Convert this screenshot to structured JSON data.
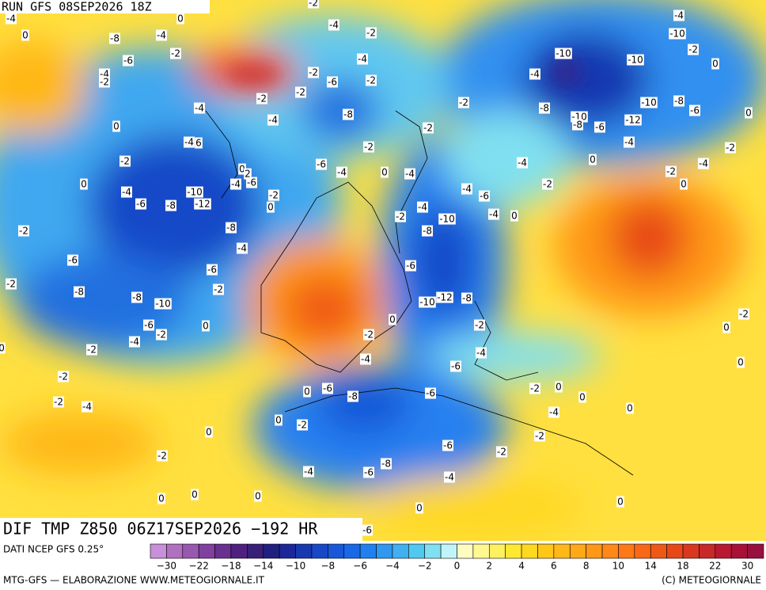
{
  "header": {
    "run": "RUN GFS 08SEP2026 18Z"
  },
  "footer": {
    "title": "DIF TMP Z850 06Z17SEP2026 −192 HR",
    "source": "DATI NCEP GFS 0.25°",
    "credit": "MTG-GFS — ELABORAZIONE WWW.METEOGIORNALE.IT",
    "copyright": "(C) METEOGIORNALE"
  },
  "colorbar": {
    "colors": [
      "#c890d8",
      "#b070c0",
      "#9858b0",
      "#8040a0",
      "#683090",
      "#502080",
      "#382078",
      "#202080",
      "#1c2898",
      "#1838b0",
      "#1848c8",
      "#1858d8",
      "#1868e8",
      "#2080f0",
      "#3098f0",
      "#40b0f0",
      "#50c8f0",
      "#80e0f0",
      "#c0f4f8",
      "#fffcc0",
      "#fff890",
      "#fff060",
      "#ffe830",
      "#ffd820",
      "#ffc818",
      "#ffb818",
      "#ffa818",
      "#ff9818",
      "#ff8818",
      "#ff7818",
      "#f86818",
      "#f05818",
      "#e84818",
      "#d83820",
      "#c82828",
      "#b81830",
      "#a81038",
      "#981040"
    ],
    "ticks": [
      "−30",
      "−22",
      "−18",
      "−14",
      "−10",
      "−8",
      "−6",
      "−4",
      "−2",
      "0",
      "2",
      "4",
      "6",
      "8",
      "10",
      "14",
      "18",
      "22",
      "30"
    ]
  },
  "contour_labels": [
    -4,
    0,
    -2,
    0,
    -8,
    -4,
    -4,
    -2,
    -4,
    -10,
    -6,
    -2,
    -4,
    -10,
    -10,
    -2,
    0,
    -4,
    -2,
    -2,
    -6,
    -2,
    -4,
    -2,
    -4,
    -2,
    -2,
    -8,
    -8,
    -10,
    -8,
    -6,
    0,
    0,
    -4,
    -10,
    -8,
    -6,
    -12,
    -2,
    -4,
    6,
    -2,
    -4,
    -2,
    -2,
    -6,
    -4,
    0,
    -4,
    -4,
    0,
    -4,
    0,
    2,
    -4,
    -6,
    0,
    -2,
    -2,
    0,
    -4,
    -10,
    -2,
    -4,
    -6,
    -6,
    -8,
    -12,
    0,
    -4,
    0,
    -2,
    -4,
    -10,
    -2,
    -8,
    -8,
    -4,
    -6,
    -6,
    -6,
    -2,
    -2,
    -8,
    -8,
    -10,
    -10,
    -12,
    -8,
    -2,
    0,
    -6,
    -2,
    0,
    -2,
    0,
    -4,
    -2,
    -2,
    0,
    -4,
    -4,
    -6,
    0,
    -2,
    0,
    -6,
    -8,
    -6,
    -2,
    0,
    0,
    -2,
    -4,
    -4,
    0,
    0,
    -2,
    0,
    -2,
    -6,
    -2,
    -2,
    -8,
    -4,
    -6,
    -4,
    0,
    0,
    0,
    0,
    0,
    -6
  ]
}
